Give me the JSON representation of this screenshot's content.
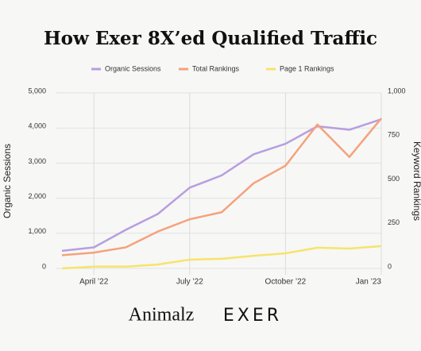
{
  "chart_data": {
    "type": "line",
    "title": "How Exer 8X’ed Qualified Traffic",
    "y_label": "Organic Sessions",
    "y2_label": "Keyword Rankings",
    "categories": [
      null,
      "April ’22",
      null,
      null,
      "July ’22",
      null,
      null,
      "October ’22",
      null,
      null,
      "Jan ’23"
    ],
    "series": [
      {
        "name": "Organic Sessions",
        "color": "#b79ee0",
        "values": [
          500,
          600,
          1100,
          1550,
          2300,
          2650,
          3250,
          3550,
          4050,
          3950,
          4250
        ]
      },
      {
        "name": "Total Rankings",
        "color": "#f5a27c",
        "axis": "y2",
        "values": [
          75,
          90,
          120,
          210,
          280,
          320,
          485,
          585,
          820,
          635,
          855
        ]
      },
      {
        "name": "Page 1 Rankings",
        "color": "#f6e46a",
        "axis": "y2",
        "values": [
          0,
          10,
          10,
          22,
          50,
          55,
          72,
          86,
          118,
          113,
          127
        ]
      }
    ],
    "ylim": [
      0,
      5000
    ],
    "yticks": [
      0,
      {
        "value": 1000,
        "label": "1,000"
      },
      {
        "value": 2000,
        "label": "2,000"
      },
      {
        "value": 3000,
        "label": "3,000"
      },
      {
        "value": 4000,
        "label": "4,000"
      },
      {
        "value": 5000,
        "label": "5,000"
      }
    ],
    "y2lim": [
      0,
      1000
    ],
    "y2ticks": [
      0,
      250,
      500,
      750,
      {
        "value": 1000,
        "label": "1,000"
      }
    ],
    "grid": true,
    "legend": "top"
  },
  "logos": [
    "Animalz",
    "EXER"
  ]
}
